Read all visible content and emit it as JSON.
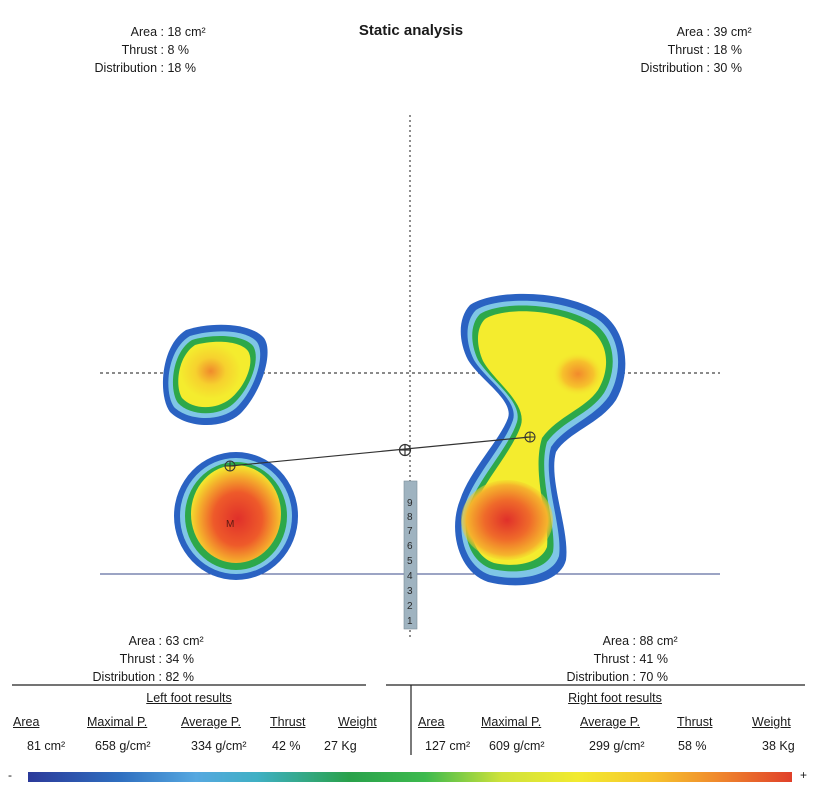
{
  "title": "Static analysis",
  "zones": {
    "top_left": {
      "area_label": "Area :",
      "area_value": "18 cm²",
      "thrust_label": "Thrust :",
      "thrust_value": "8 %",
      "distribution_label": "Distribution :",
      "distribution_value": "18 %"
    },
    "top_right": {
      "area_label": "Area :",
      "area_value": "39 cm²",
      "thrust_label": "Thrust :",
      "thrust_value": "18 %",
      "distribution_label": "Distribution :",
      "distribution_value": "30 %"
    },
    "bottom_left": {
      "area_label": "Area :",
      "area_value": "63 cm²",
      "thrust_label": "Thrust :",
      "thrust_value": "34 %",
      "distribution_label": "Distribution :",
      "distribution_value": "82 %"
    },
    "bottom_right": {
      "area_label": "Area :",
      "area_value": "88 cm²",
      "thrust_label": "Thrust :",
      "thrust_value": "41 %",
      "distribution_label": "Distribution :",
      "distribution_value": "70 %"
    }
  },
  "left_results": {
    "title": "Left foot results",
    "headers": {
      "area": "Area",
      "max_p": "Maximal P.",
      "avg_p": "Average P.",
      "thrust": "Thrust",
      "weight": "Weight"
    },
    "values": {
      "area": "81 cm²",
      "max_p": "658 g/cm²",
      "avg_p": "334 g/cm²",
      "thrust": "42 %",
      "weight": "27 Kg"
    }
  },
  "right_results": {
    "title": "Right foot results",
    "headers": {
      "area": "Area",
      "max_p": "Maximal P.",
      "avg_p": "Average P.",
      "thrust": "Thrust",
      "weight": "Weight"
    },
    "values": {
      "area": "127 cm²",
      "max_p": "609 g/cm²",
      "avg_p": "299 g/cm²",
      "thrust": "58 %",
      "weight": "38 Kg"
    }
  },
  "heel_marker": "M",
  "scale_ticks": [
    "9",
    "8",
    "7",
    "6",
    "5",
    "4",
    "3",
    "2",
    "1"
  ],
  "color_scale": {
    "min_label": "-",
    "max_label": "+"
  },
  "colors": {
    "blue": "#2a62c2",
    "cyan": "#6fc3e8",
    "green": "#2da84a",
    "yellow": "#f4ec2e",
    "orange": "#f29a2c",
    "red": "#e0382a"
  }
}
